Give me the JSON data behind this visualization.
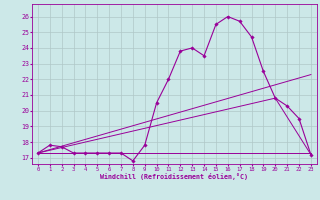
{
  "xlabel": "Windchill (Refroidissement éolien,°C)",
  "bg_color": "#cce8e8",
  "grid_color": "#b0c8c8",
  "line_color": "#990099",
  "xlim_min": -0.5,
  "xlim_max": 23.5,
  "ylim_min": 16.6,
  "ylim_max": 26.8,
  "xticks": [
    0,
    1,
    2,
    3,
    4,
    5,
    6,
    7,
    8,
    9,
    10,
    11,
    12,
    13,
    14,
    15,
    16,
    17,
    18,
    19,
    20,
    21,
    22,
    23
  ],
  "yticks": [
    17,
    18,
    19,
    20,
    21,
    22,
    23,
    24,
    25,
    26
  ],
  "series1_x": [
    0,
    1,
    2,
    3,
    4,
    5,
    6,
    7,
    8,
    9,
    10,
    11,
    12,
    13,
    14,
    15,
    16,
    17,
    18,
    19,
    20,
    21,
    22,
    23
  ],
  "series1_y": [
    17.3,
    17.8,
    17.7,
    17.3,
    17.3,
    17.3,
    17.3,
    17.3,
    16.8,
    17.8,
    20.5,
    22.0,
    23.8,
    24.0,
    23.5,
    25.5,
    26.0,
    25.7,
    24.7,
    22.5,
    20.8,
    20.3,
    19.5,
    17.2
  ],
  "series2_x": [
    0,
    23
  ],
  "series2_y": [
    17.3,
    17.3
  ],
  "series3_x": [
    0,
    23
  ],
  "series3_y": [
    17.3,
    22.3
  ],
  "series4_x": [
    0,
    20,
    23
  ],
  "series4_y": [
    17.3,
    20.8,
    17.2
  ]
}
